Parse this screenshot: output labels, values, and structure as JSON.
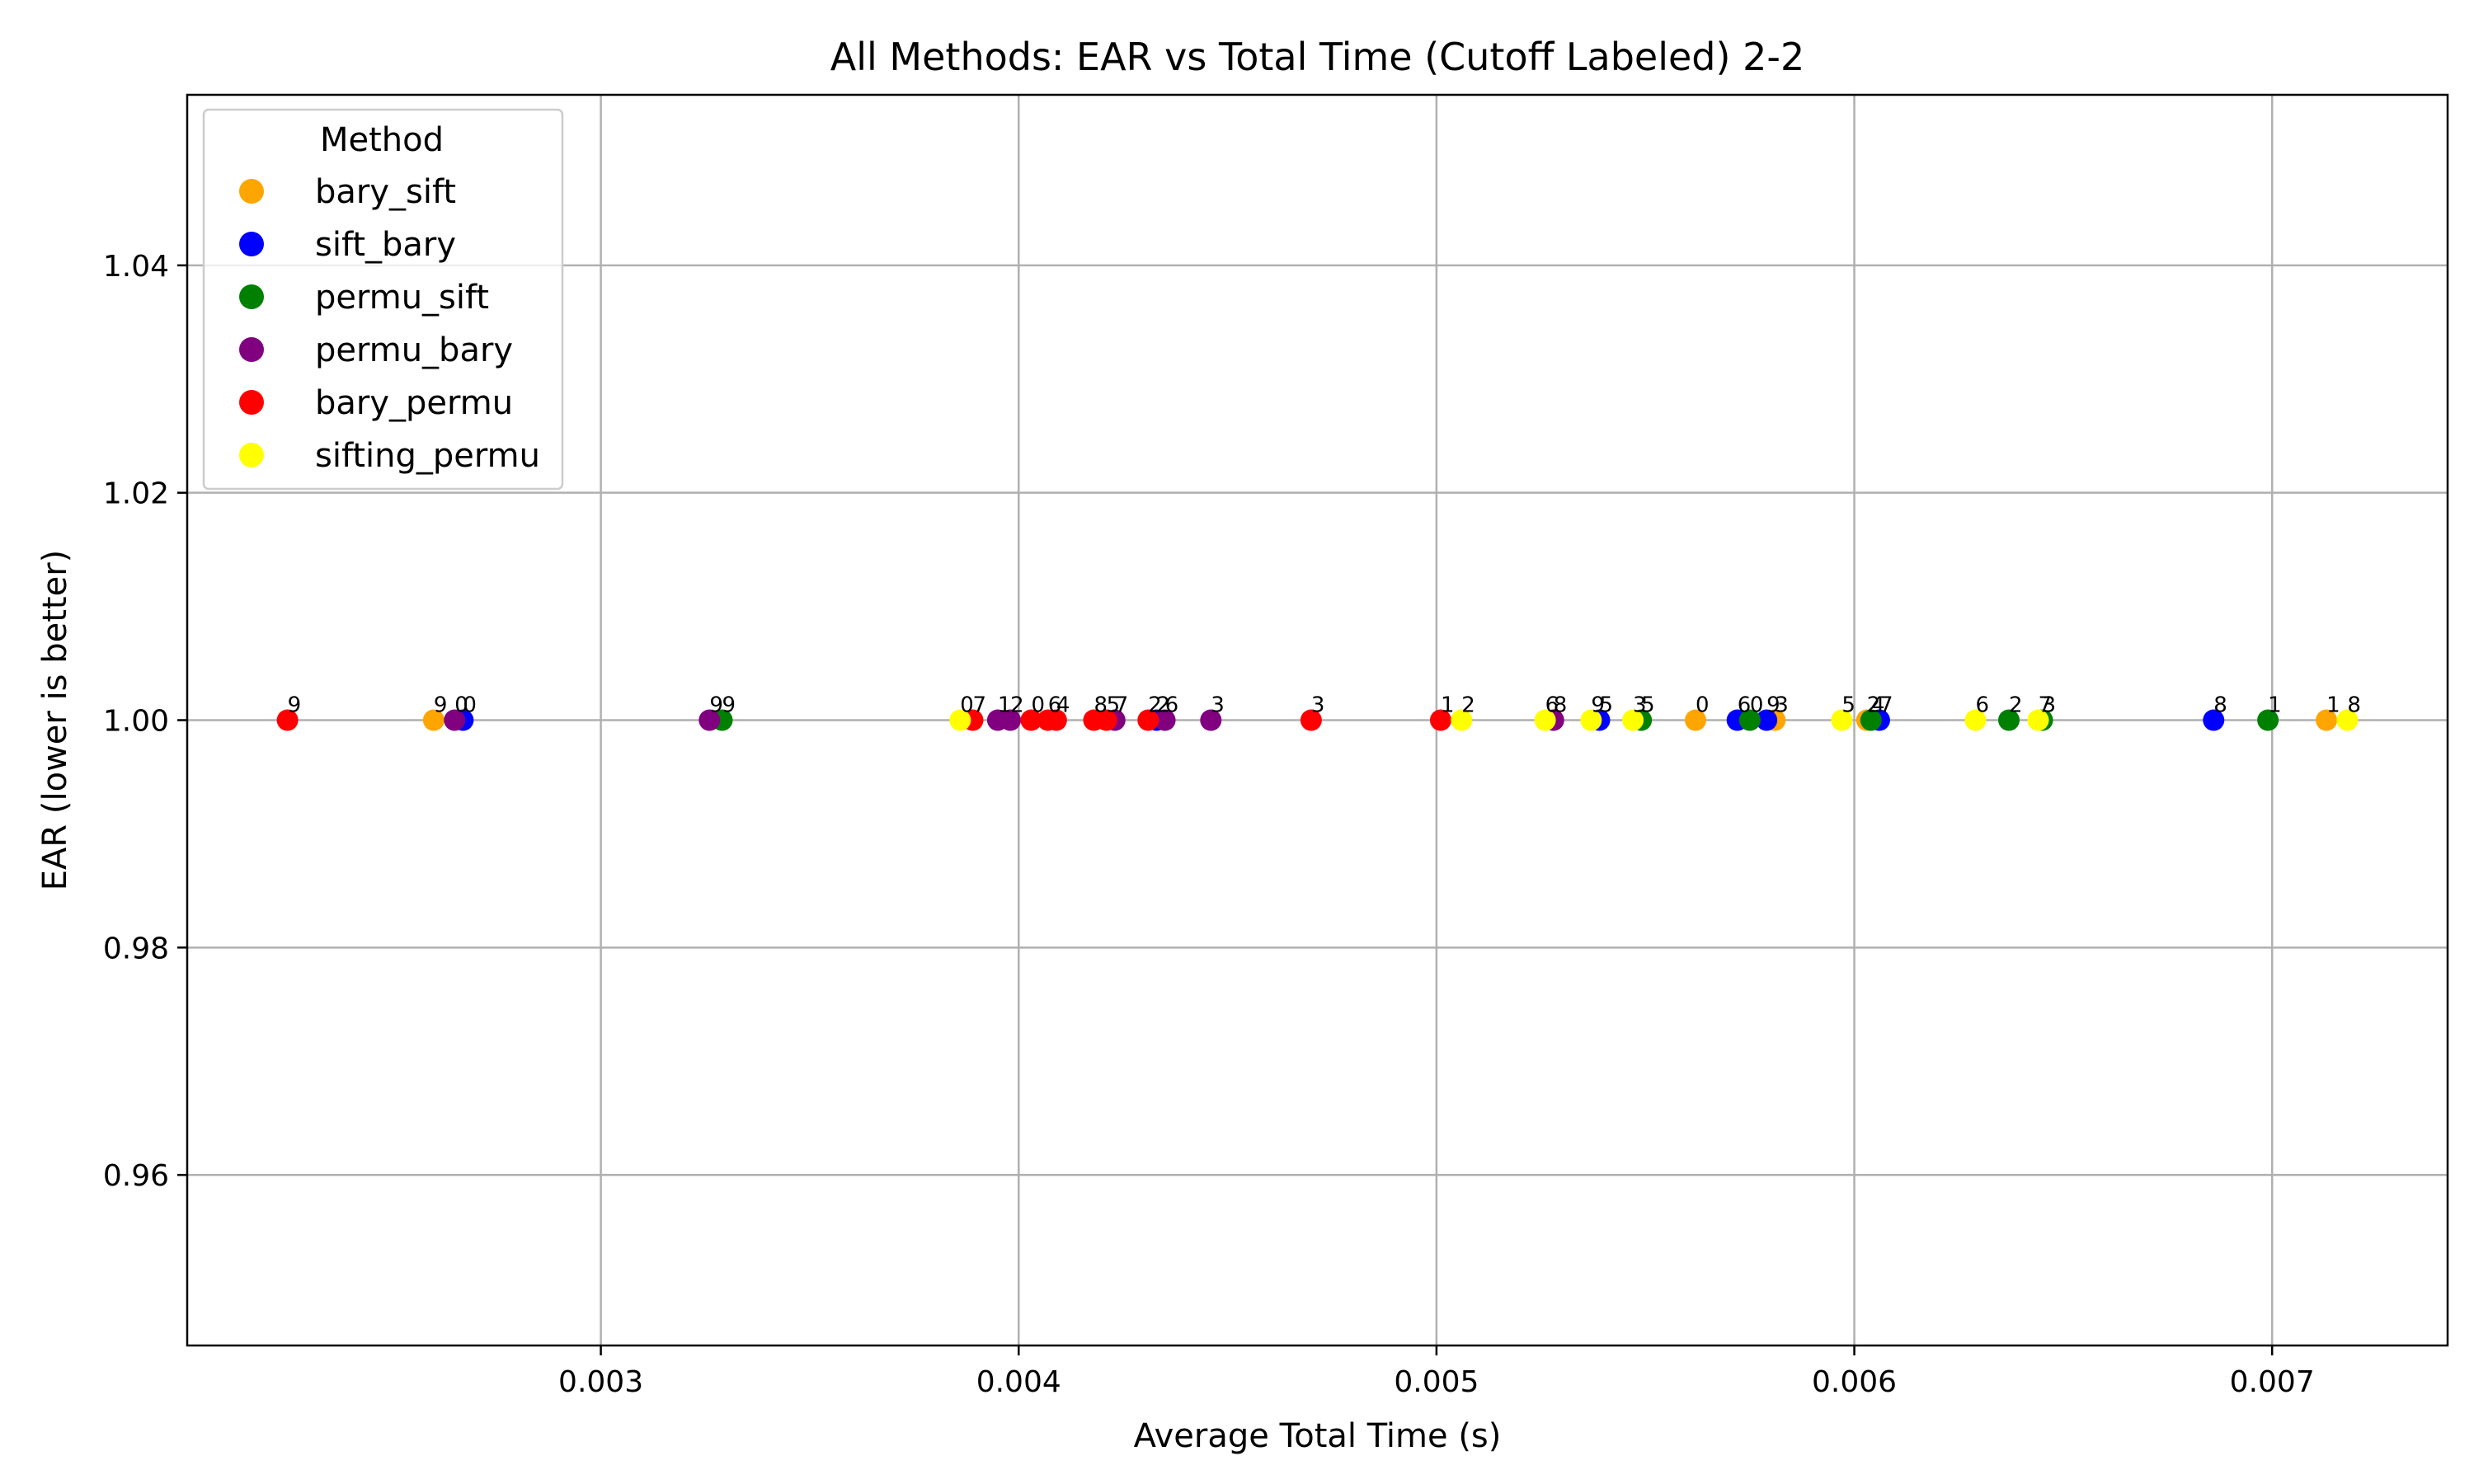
{
  "chart_data": {
    "type": "scatter",
    "title": "All Methods: EAR vs Total Time (Cutoff Labeled) 2-2",
    "xlabel": "Average Total Time (s)",
    "ylabel": "EAR (lower is better)",
    "xlim": [
      0.00201,
      0.00742
    ],
    "ylim": [
      0.945,
      1.055
    ],
    "xticks": [
      0.003,
      0.004,
      0.005,
      0.006,
      0.007
    ],
    "xtick_labels": [
      "0.003",
      "0.004",
      "0.005",
      "0.006",
      "0.007"
    ],
    "yticks": [
      0.96,
      0.98,
      1.0,
      1.02,
      1.04
    ],
    "ytick_labels": [
      "0.96",
      "0.98",
      "1.00",
      "1.02",
      "1.04"
    ],
    "grid": true,
    "legend": {
      "title": "Method",
      "placement": "top-left"
    },
    "series": [
      {
        "name": "bary_sift",
        "color": "#FFA500",
        "points": [
          {
            "x": 0.0026,
            "y": 1.0,
            "label": "9"
          },
          {
            "x": 0.00562,
            "y": 1.0,
            "label": "0"
          },
          {
            "x": 0.00581,
            "y": 1.0,
            "label": "3"
          },
          {
            "x": 0.00603,
            "y": 1.0,
            "label": "2"
          },
          {
            "x": 0.00713,
            "y": 1.0,
            "label": "1"
          }
        ]
      },
      {
        "name": "sift_bary",
        "color": "#0000FF",
        "points": [
          {
            "x": 0.00267,
            "y": 1.0,
            "label": "0"
          },
          {
            "x": 0.00433,
            "y": 1.0,
            "label": "2"
          },
          {
            "x": 0.00539,
            "y": 1.0,
            "label": "5"
          },
          {
            "x": 0.00572,
            "y": 1.0,
            "label": "6"
          },
          {
            "x": 0.00579,
            "y": 1.0,
            "label": "9"
          },
          {
            "x": 0.00606,
            "y": 1.0,
            "label": "7"
          },
          {
            "x": 0.00686,
            "y": 1.0,
            "label": "8"
          }
        ]
      },
      {
        "name": "permu_sift",
        "color": "#008000",
        "points": [
          {
            "x": 0.00329,
            "y": 1.0,
            "label": "9"
          },
          {
            "x": 0.00549,
            "y": 1.0,
            "label": "5"
          },
          {
            "x": 0.00575,
            "y": 1.0,
            "label": "0"
          },
          {
            "x": 0.00604,
            "y": 1.0,
            "label": "4"
          },
          {
            "x": 0.00637,
            "y": 1.0,
            "label": "2"
          },
          {
            "x": 0.00645,
            "y": 1.0,
            "label": "3"
          },
          {
            "x": 0.00699,
            "y": 1.0,
            "label": "1"
          }
        ]
      },
      {
        "name": "permu_bary",
        "color": "#800080",
        "points": [
          {
            "x": 0.00265,
            "y": 1.0,
            "label": "0"
          },
          {
            "x": 0.00326,
            "y": 1.0,
            "label": "9"
          },
          {
            "x": 0.00395,
            "y": 1.0,
            "label": "1"
          },
          {
            "x": 0.00398,
            "y": 1.0,
            "label": "2"
          },
          {
            "x": 0.00423,
            "y": 1.0,
            "label": "7"
          },
          {
            "x": 0.00435,
            "y": 1.0,
            "label": "6"
          },
          {
            "x": 0.00446,
            "y": 1.0,
            "label": "3"
          },
          {
            "x": 0.00528,
            "y": 1.0,
            "label": "8"
          }
        ]
      },
      {
        "name": "bary_permu",
        "color": "#FF0000",
        "points": [
          {
            "x": 0.00225,
            "y": 1.0,
            "label": "9"
          },
          {
            "x": 0.00389,
            "y": 1.0,
            "label": "7"
          },
          {
            "x": 0.00403,
            "y": 1.0,
            "label": "0"
          },
          {
            "x": 0.00407,
            "y": 1.0,
            "label": "6"
          },
          {
            "x": 0.00409,
            "y": 1.0,
            "label": "4"
          },
          {
            "x": 0.00418,
            "y": 1.0,
            "label": "8"
          },
          {
            "x": 0.00421,
            "y": 1.0,
            "label": "5"
          },
          {
            "x": 0.00431,
            "y": 1.0,
            "label": "2"
          },
          {
            "x": 0.0047,
            "y": 1.0,
            "label": "3"
          },
          {
            "x": 0.00501,
            "y": 1.0,
            "label": "1"
          }
        ]
      },
      {
        "name": "sifting_permu",
        "color": "#FFFF00",
        "points": [
          {
            "x": 0.00386,
            "y": 1.0,
            "label": "0"
          },
          {
            "x": 0.00506,
            "y": 1.0,
            "label": "2"
          },
          {
            "x": 0.00526,
            "y": 1.0,
            "label": "6"
          },
          {
            "x": 0.00537,
            "y": 1.0,
            "label": "9"
          },
          {
            "x": 0.00547,
            "y": 1.0,
            "label": "3"
          },
          {
            "x": 0.00597,
            "y": 1.0,
            "label": "5"
          },
          {
            "x": 0.00629,
            "y": 1.0,
            "label": "6"
          },
          {
            "x": 0.00644,
            "y": 1.0,
            "label": "7"
          },
          {
            "x": 0.00718,
            "y": 1.0,
            "label": "8"
          }
        ]
      }
    ]
  }
}
